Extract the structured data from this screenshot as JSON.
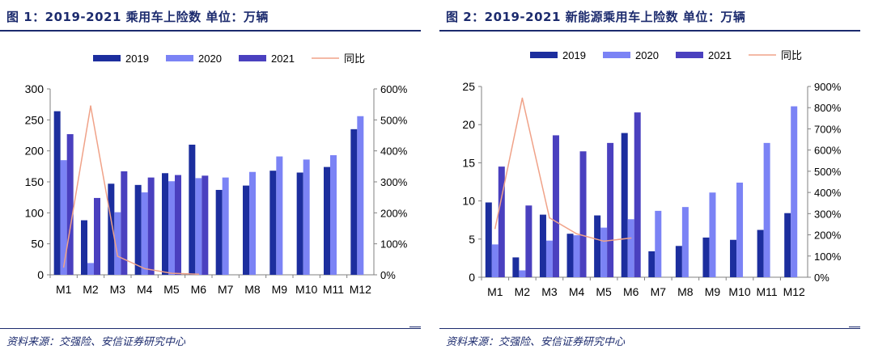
{
  "figures": [
    {
      "title": "图 1：2019-2021 乘用车上险数 单位：万辆",
      "source": "资料来源：交强险、安信证券研究中心",
      "chart_data": {
        "type": "bar",
        "categories": [
          "M1",
          "M2",
          "M3",
          "M4",
          "M5",
          "M6",
          "M7",
          "M8",
          "M9",
          "M10",
          "M11",
          "M12"
        ],
        "series": [
          {
            "name": "2019",
            "axis": "left",
            "values": [
              264,
              88,
              147,
              145,
              164,
              210,
              137,
              144,
              168,
              165,
              174,
              235
            ]
          },
          {
            "name": "2020",
            "axis": "left",
            "values": [
              185,
              19,
              101,
              133,
              151,
              156,
              157,
              166,
              191,
              186,
              193,
              256
            ]
          },
          {
            "name": "2021",
            "axis": "left",
            "values": [
              227,
              124,
              167,
              157,
              161,
              160,
              null,
              null,
              null,
              null,
              null,
              null
            ]
          },
          {
            "name": "同比",
            "axis": "right",
            "type": "line",
            "values": [
              0.25,
              5.45,
              0.6,
              0.2,
              0.05,
              0.02,
              null,
              null,
              null,
              null,
              null,
              null
            ]
          }
        ],
        "ylim": [
          0,
          300
        ],
        "yticks": [
          0,
          50,
          100,
          150,
          200,
          250,
          300
        ],
        "y2lim": [
          0,
          6
        ],
        "y2ticks": [
          "0%",
          "100%",
          "200%",
          "300%",
          "400%",
          "500%",
          "600%"
        ],
        "legend": "top",
        "grid": false
      }
    },
    {
      "title": "图 2：2019-2021 新能源乘用车上险数 单位：万辆",
      "source": "资料来源：交强险、安信证券研究中心",
      "chart_data": {
        "type": "bar",
        "categories": [
          "M1",
          "M2",
          "M3",
          "M4",
          "M5",
          "M6",
          "M7",
          "M8",
          "M9",
          "M10",
          "M11",
          "M12"
        ],
        "series": [
          {
            "name": "2019",
            "axis": "left",
            "values": [
              9.8,
              2.6,
              8.2,
              5.7,
              8.1,
              18.9,
              3.4,
              4.1,
              5.2,
              4.9,
              6.2,
              8.4
            ]
          },
          {
            "name": "2020",
            "axis": "left",
            "values": [
              4.3,
              0.9,
              4.8,
              5.5,
              6.5,
              7.6,
              8.7,
              9.2,
              11.1,
              12.4,
              17.6,
              22.4
            ]
          },
          {
            "name": "2021",
            "axis": "left",
            "values": [
              14.5,
              9.4,
              18.6,
              16.5,
              17.6,
              21.6,
              null,
              null,
              null,
              null,
              null,
              null
            ]
          },
          {
            "name": "同比",
            "axis": "right",
            "type": "line",
            "values": [
              2.3,
              8.45,
              2.8,
              2.05,
              1.7,
              1.85,
              null,
              null,
              null,
              null,
              null,
              null
            ]
          }
        ],
        "ylim": [
          0,
          25
        ],
        "yticks": [
          0,
          5,
          10,
          15,
          20,
          25
        ],
        "y2lim": [
          0,
          9
        ],
        "y2ticks": [
          "0%",
          "100%",
          "200%",
          "300%",
          "400%",
          "500%",
          "600%",
          "700%",
          "800%",
          "900%"
        ],
        "legend": "top",
        "grid": false
      }
    }
  ],
  "colors": {
    "2019": "#1c2e9e",
    "2020": "#7b83f5",
    "2021": "#4a40bf",
    "同比": "#f0a288",
    "frame": "#1c2b6e",
    "axis": "#808080"
  }
}
